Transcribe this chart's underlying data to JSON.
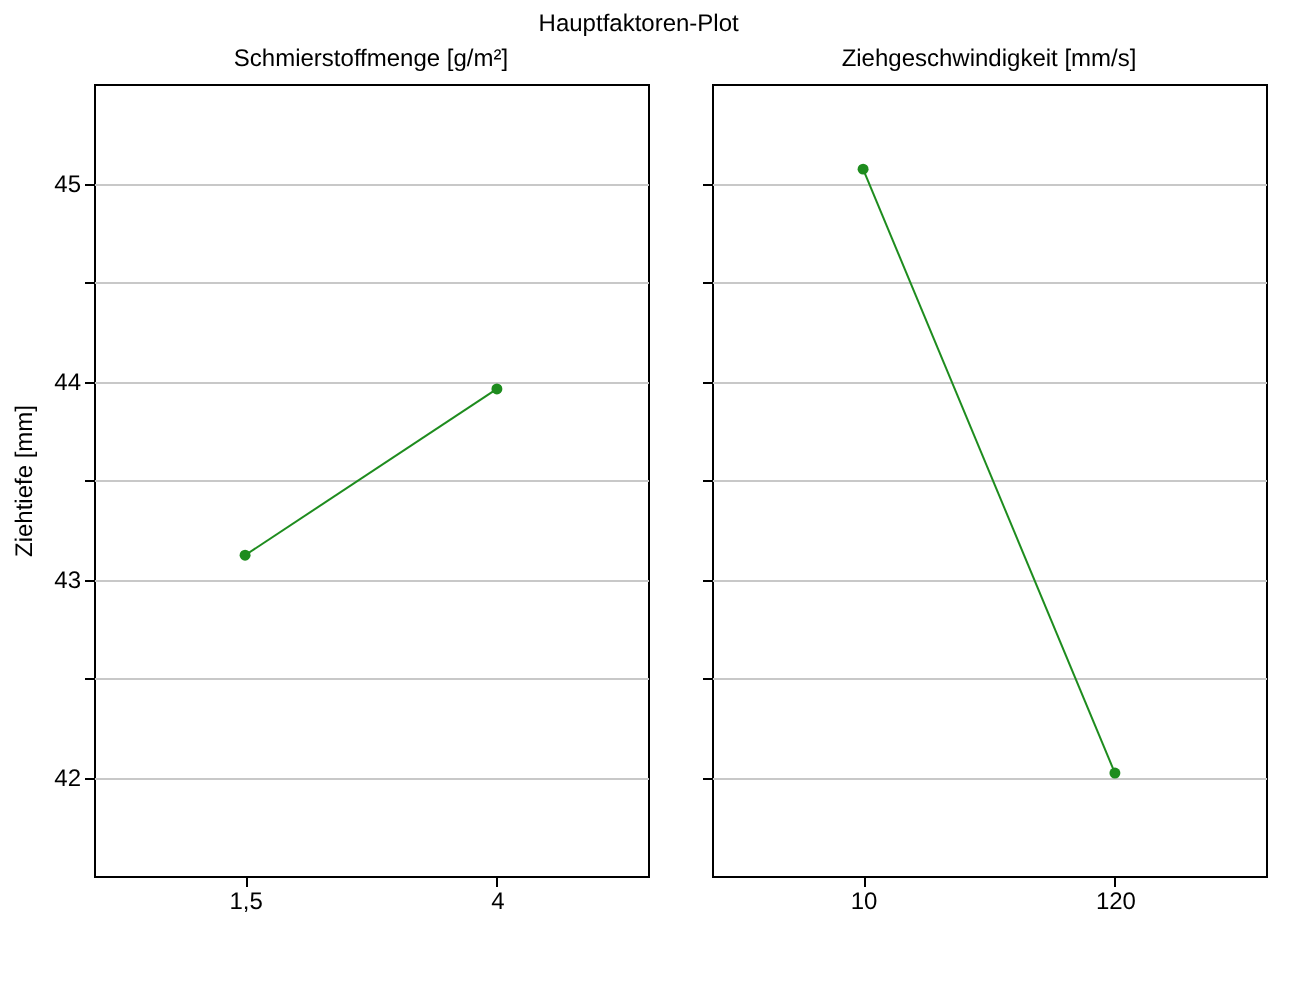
{
  "chart_data": [
    {
      "type": "line",
      "title": "Hauptfaktoren-Plot",
      "subtitle": "Schmierstoffmenge [g/m²]",
      "ylabel": "Ziehtiefe [mm]",
      "categories": [
        "1,5",
        "4"
      ],
      "series": [
        {
          "color": "#1e8c1e",
          "values": [
            43.12,
            43.96
          ]
        }
      ],
      "ylim": [
        41.5,
        45.5
      ],
      "yticks": [
        {
          "value": 42,
          "label": "42"
        },
        {
          "value": 42.5,
          "label": null
        },
        {
          "value": 43,
          "label": "43"
        },
        {
          "value": 43.5,
          "label": null
        },
        {
          "value": 44,
          "label": "44"
        },
        {
          "value": 44.5,
          "label": null
        },
        {
          "value": 45,
          "label": "45"
        }
      ],
      "grid": "y",
      "marker": "circle",
      "legend": false
    },
    {
      "type": "line",
      "subtitle": "Ziehgeschwindigkeit [mm/s]",
      "categories": [
        "10",
        "120"
      ],
      "series": [
        {
          "color": "#1e8c1e",
          "values": [
            45.07,
            42.02
          ]
        }
      ],
      "ylim": [
        41.5,
        45.5
      ],
      "yticks": [
        {
          "value": 42,
          "label": null
        },
        {
          "value": 42.5,
          "label": null
        },
        {
          "value": 43,
          "label": null
        },
        {
          "value": 43.5,
          "label": null
        },
        {
          "value": 44,
          "label": null
        },
        {
          "value": 44.5,
          "label": null
        },
        {
          "value": 45,
          "label": null
        }
      ],
      "grid": "y",
      "marker": "circle",
      "legend": false,
      "tick_labels": "x"
    }
  ]
}
